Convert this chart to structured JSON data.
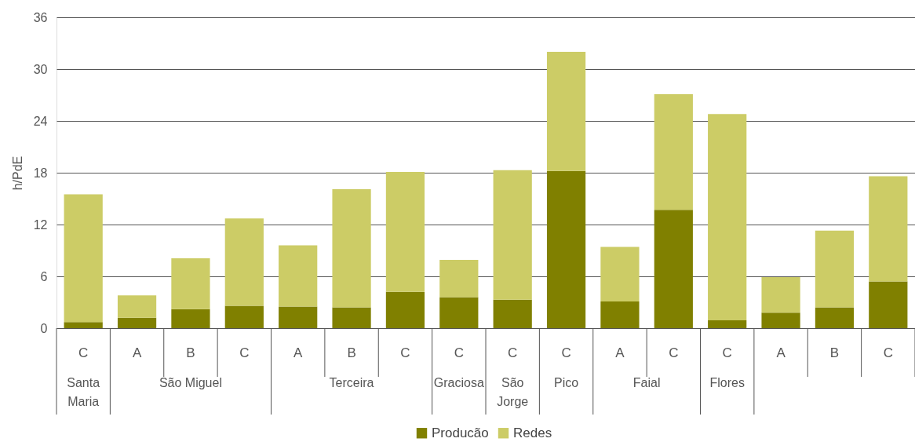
{
  "chart_data": {
    "type": "bar",
    "stacked": true,
    "ylabel": "h/PdE",
    "categories": [
      "C",
      "A",
      "B",
      "C",
      "A",
      "B",
      "C",
      "C",
      "C",
      "C",
      "A",
      "C",
      "C",
      "A",
      "B",
      "C"
    ],
    "annotations": [
      "Santa Maria",
      "São Miguel",
      "Terceira",
      "Graciosa",
      "São Jorge",
      "Pico",
      "Faial",
      "Flores",
      null
    ],
    "series": [
      {
        "name": "Producão",
        "color": "#808000",
        "values": [
          0.7,
          1.2,
          2.2,
          2.6,
          2.5,
          2.4,
          4.2,
          3.6,
          3.3,
          18.2,
          3.1,
          13.7,
          0.9,
          1.8,
          2.4,
          5.4
        ]
      },
      {
        "name": "Redes",
        "color": "#cccc66",
        "values": [
          14.8,
          2.6,
          5.9,
          10.1,
          7.1,
          13.7,
          13.9,
          4.3,
          15.0,
          13.8,
          6.3,
          13.4,
          23.9,
          4.1,
          8.9,
          12.2
        ]
      }
    ],
    "ylim": [
      0,
      36
    ],
    "yticks": [
      0,
      6,
      12,
      18,
      24,
      30,
      36
    ],
    "grid": "y",
    "legend": "bottom"
  }
}
